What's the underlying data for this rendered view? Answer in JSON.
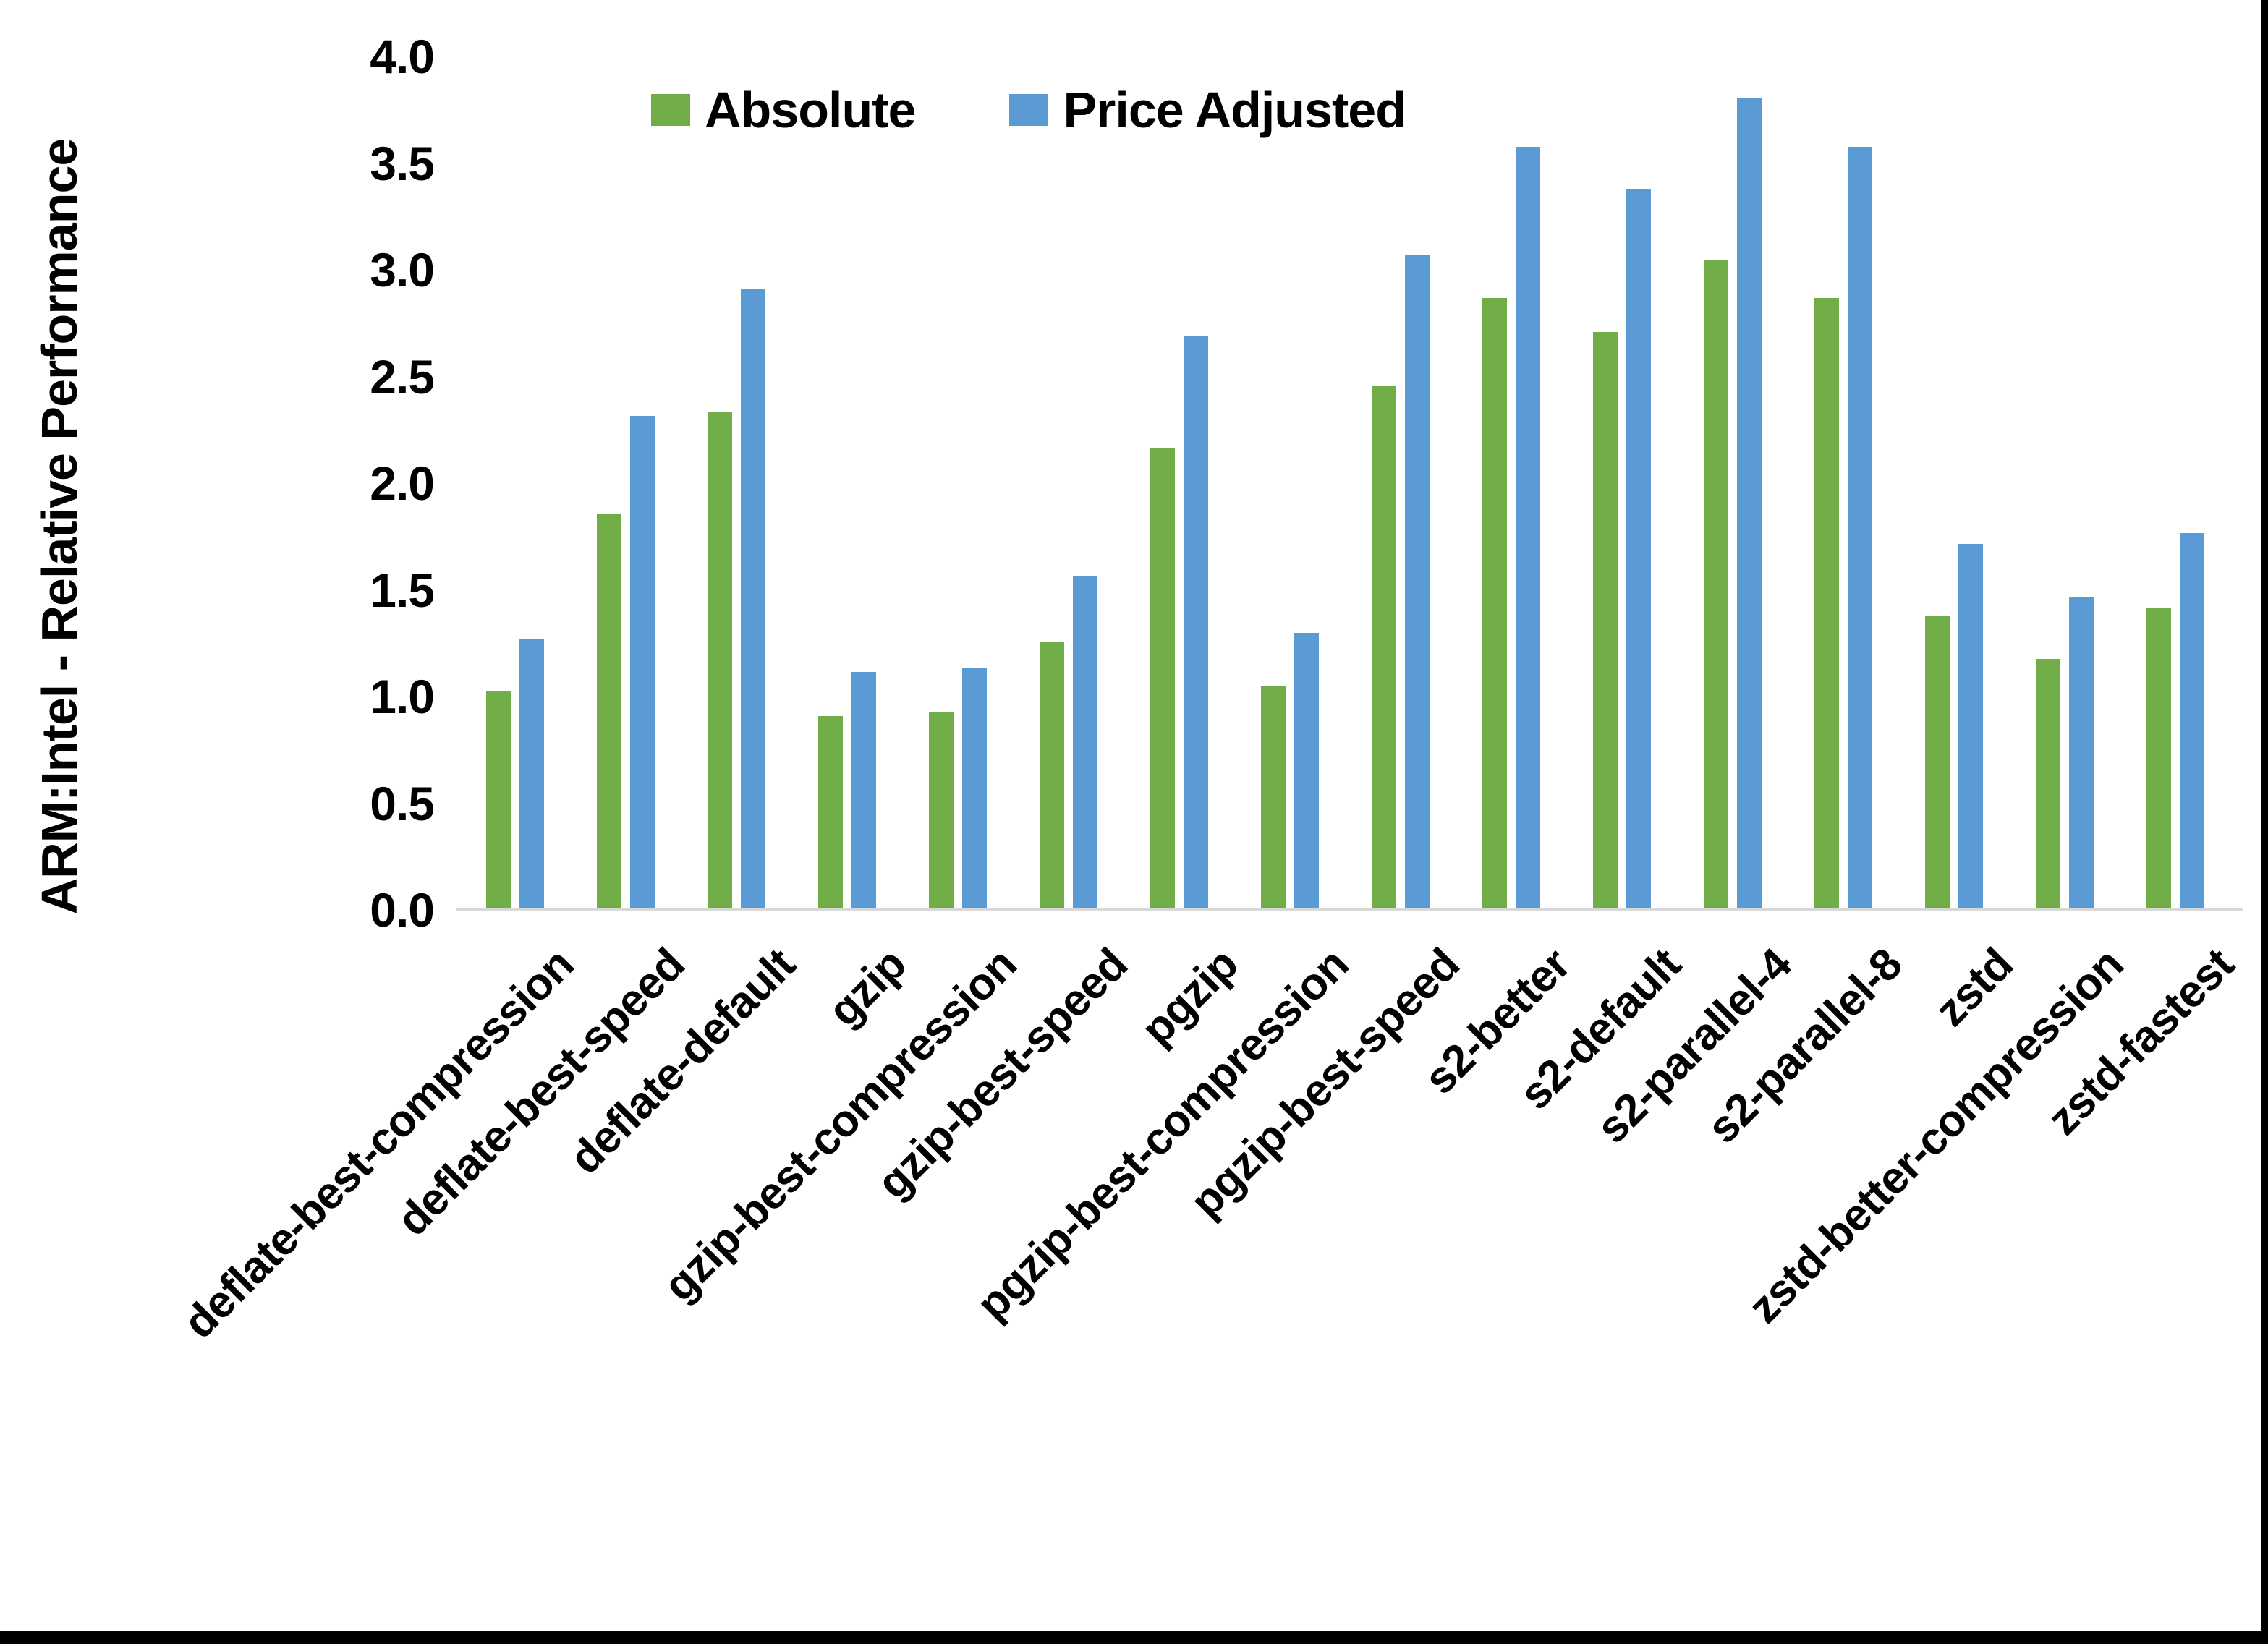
{
  "chart_data": {
    "type": "bar",
    "title": "",
    "xlabel": "",
    "ylabel": "ARM:Intel - Relative Performance",
    "ylim": [
      0.0,
      4.0
    ],
    "ytick_labels": [
      "0.0",
      "0.5",
      "1.0",
      "1.5",
      "2.0",
      "2.5",
      "3.0",
      "3.5",
      "4.0"
    ],
    "ytick_values": [
      0.0,
      0.5,
      1.0,
      1.5,
      2.0,
      2.5,
      3.0,
      3.5,
      4.0
    ],
    "grid": false,
    "legend_position": "top-center",
    "categories": [
      "deflate-best-compression",
      "deflate-best-speed",
      "deflate-default",
      "gzip",
      "gzip-best-compression",
      "gzip-best-speed",
      "pgzip",
      "pgzip-best-compression",
      "pgzip-best-speed",
      "s2-better",
      "s2-default",
      "s2-parallel-4",
      "s2-parallel-8",
      "zstd",
      "zstd-better-compression",
      "zstd-fastest"
    ],
    "series": [
      {
        "name": "Absolute",
        "color": "#70AD47",
        "values": [
          1.02,
          1.85,
          2.33,
          0.9,
          0.92,
          1.25,
          2.16,
          1.04,
          2.45,
          2.86,
          2.7,
          3.04,
          2.86,
          1.37,
          1.17,
          1.41
        ]
      },
      {
        "name": "Price Adjusted",
        "color": "#5B9BD5",
        "values": [
          1.26,
          2.31,
          2.9,
          1.11,
          1.13,
          1.56,
          2.68,
          1.29,
          3.06,
          3.57,
          3.37,
          3.8,
          3.57,
          1.71,
          1.46,
          1.76
        ]
      }
    ]
  },
  "colors": {
    "background": "#ffffff",
    "axis_line": "#d9d9d9",
    "text": "#000000",
    "screen_border": "#000000"
  }
}
